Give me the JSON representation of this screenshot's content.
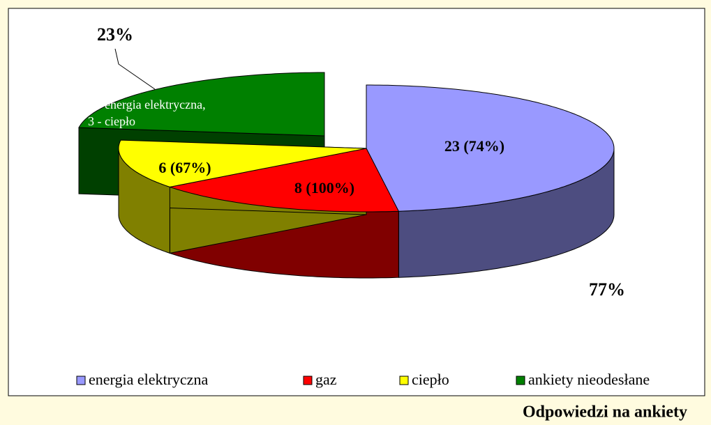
{
  "chart_data": {
    "type": "pie3d",
    "title": "Odpowiedzi na ankiety",
    "categories": [
      "energia elektryczna",
      "gaz",
      "ciepło",
      "ankiety nieodesłane"
    ],
    "values": [
      23,
      8,
      6,
      11
    ],
    "value_labels": [
      "23 (74%)",
      "8 (100%)",
      "6 (67%)",
      "8 - energia elektryczna, 3 - ciepło"
    ],
    "colors": [
      "#9999ff",
      "#ff0000",
      "#ffff00",
      "#008000"
    ],
    "side_colors": [
      "#4d4d80",
      "#800000",
      "#808000",
      "#004000"
    ],
    "exploded": [
      false,
      false,
      false,
      true
    ],
    "annotations": [
      "23%",
      "77%"
    ],
    "legend": "bottom"
  }
}
